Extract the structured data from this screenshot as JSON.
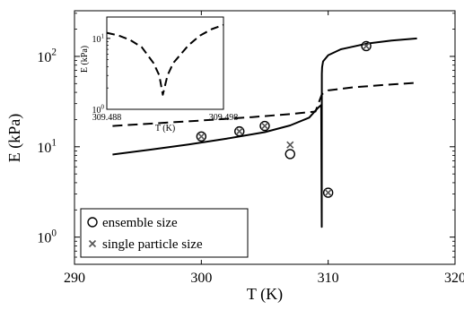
{
  "chart_data": {
    "type": "scatter",
    "xlabel": "T (K)",
    "ylabel": "E (kPa)",
    "xlim": [
      290,
      320
    ],
    "ylim": [
      0.5,
      320
    ],
    "yscale": "log",
    "x_ticks": [
      290,
      300,
      310,
      320
    ],
    "y_ticks": [
      {
        "value": 1,
        "base": "10",
        "exp": "0"
      },
      {
        "value": 10,
        "base": "10",
        "exp": "1"
      },
      {
        "value": 100,
        "base": "10",
        "exp": "2"
      }
    ],
    "grid": false,
    "legend_position": "bottom-left",
    "series": [
      {
        "name": "ensemble size",
        "style": "marker-circle",
        "x": [
          300.0,
          303.0,
          305.0,
          307.0,
          310.0,
          313.0
        ],
        "y": [
          13.0,
          14.8,
          17.0,
          8.3,
          3.1,
          130
        ]
      },
      {
        "name": "single particle size",
        "style": "marker-x",
        "x": [
          300.0,
          303.0,
          305.0,
          307.0,
          310.0,
          313.0
        ],
        "y": [
          13.0,
          14.8,
          17.0,
          10.5,
          3.1,
          130
        ]
      },
      {
        "style": "solid",
        "x": [
          293,
          296,
          299,
          302,
          305,
          307,
          308.5,
          309.2,
          309.45,
          309.49,
          309.5,
          309.52,
          309.6,
          310,
          311,
          313,
          315,
          317
        ],
        "y": [
          8.2,
          9.3,
          10.6,
          12.3,
          14.5,
          17.2,
          21,
          27,
          29,
          1.3,
          64,
          76,
          88,
          103,
          120,
          138,
          150,
          158
        ]
      },
      {
        "style": "dashed",
        "x": [
          293,
          296,
          300,
          304,
          307,
          309,
          309.5,
          310,
          312,
          315,
          317
        ],
        "y": [
          17,
          18,
          19.5,
          21.3,
          23,
          24.5,
          38,
          42,
          45.5,
          49,
          51
        ]
      }
    ],
    "inset": {
      "xlabel": "T (K)",
      "ylabel": "E (kPa)",
      "xlim": [
        309.488,
        309.498
      ],
      "ylim": [
        1,
        20
      ],
      "yscale": "log",
      "x_tick_labels": [
        "309.488",
        "309.498"
      ],
      "y_ticks": [
        {
          "value": 1,
          "base": "10",
          "exp": "0"
        },
        {
          "value": 10,
          "base": "10",
          "exp": "1"
        }
      ],
      "series": [
        {
          "style": "dashed",
          "x": [
            309.488,
            309.489,
            309.49,
            309.491,
            309.492,
            309.4925,
            309.4928,
            309.4932,
            309.4937,
            309.495,
            309.496,
            309.497,
            309.498
          ],
          "y": [
            12,
            11,
            9.5,
            7.5,
            4.5,
            3.0,
            1.6,
            3.0,
            4.5,
            8.0,
            11,
            13.5,
            15.5
          ]
        }
      ]
    }
  }
}
